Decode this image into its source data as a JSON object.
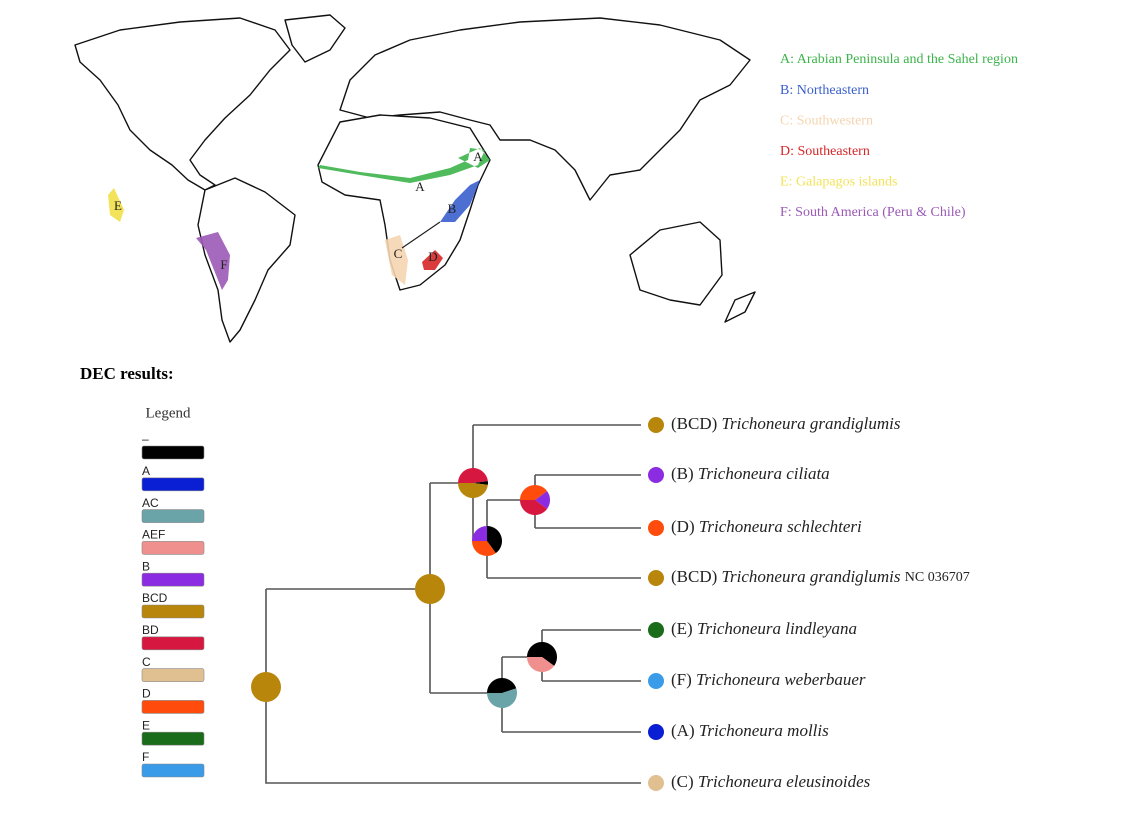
{
  "map_legend": [
    {
      "label": "A: Arabian Peninsula and the Sahel region",
      "color": "#3cb44b"
    },
    {
      "label": "B: Northeastern",
      "color": "#3a5fcd"
    },
    {
      "label": "C: Southwestern",
      "color": "#f5d5b0"
    },
    {
      "label": "D: Southeastern",
      "color": "#d62728"
    },
    {
      "label": "E: Galapagos islands",
      "color": "#f2e35a"
    },
    {
      "label": "F: South America (Peru & Chile)",
      "color": "#9b59b6"
    }
  ],
  "map_labels": [
    "A",
    "A",
    "B",
    "C",
    "D",
    "E",
    "F"
  ],
  "section_title": "DEC results:",
  "legend": {
    "title": "Legend",
    "entries": [
      {
        "label": "–",
        "color": "#000000"
      },
      {
        "label": "A",
        "color": "#0a1fd4"
      },
      {
        "label": "AC",
        "color": "#6aa3a8"
      },
      {
        "label": "AEF",
        "color": "#f0908e"
      },
      {
        "label": "B",
        "color": "#8b2be2"
      },
      {
        "label": "BCD",
        "color": "#b8860b"
      },
      {
        "label": "BD",
        "color": "#d6173f"
      },
      {
        "label": "C",
        "color": "#e0c090"
      },
      {
        "label": "D",
        "color": "#ff4c0c"
      },
      {
        "label": "E",
        "color": "#1a6b1a"
      },
      {
        "label": "F",
        "color": "#3a9be8"
      }
    ]
  },
  "tips": [
    {
      "area": "(BCD)",
      "species": "Trichoneura grandiglumis",
      "color": "#b8860b"
    },
    {
      "area": "(B)",
      "species": "Trichoneura ciliata",
      "color": "#8b2be2"
    },
    {
      "area": "(D)",
      "species": "Trichoneura schlechteri",
      "color": "#ff4c0c"
    },
    {
      "area": "(BCD)",
      "species": "Trichoneura grandiglumis",
      "suffix": "NC 036707",
      "color": "#b8860b"
    },
    {
      "area": "(E)",
      "species": "Trichoneura lindleyana",
      "color": "#1a6b1a"
    },
    {
      "area": "(F)",
      "species": "Trichoneura weberbauer",
      "color": "#3a9be8"
    },
    {
      "area": "(A)",
      "species": "Trichoneura mollis",
      "color": "#0a1fd4"
    },
    {
      "area": "(C)",
      "species": "Trichoneura eleusinoides",
      "color": "#e0c090"
    }
  ],
  "nodes": [
    {
      "slices": [
        {
          "color": "#b8860b",
          "share": 100
        }
      ]
    },
    {
      "slices": [
        {
          "color": "#b8860b",
          "share": 100
        }
      ]
    },
    {
      "slices": [
        {
          "color": "#d6173f",
          "share": 48
        },
        {
          "color": "#000000",
          "share": 4
        },
        {
          "color": "#b8860b",
          "share": 48
        }
      ]
    },
    {
      "slices": [
        {
          "color": "#8b2be2",
          "share": 25
        },
        {
          "color": "#000000",
          "share": 40
        },
        {
          "color": "#ff4c0c",
          "share": 35
        }
      ]
    },
    {
      "slices": [
        {
          "color": "#ff4c0c",
          "share": 40
        },
        {
          "color": "#8b2be2",
          "share": 20
        },
        {
          "color": "#d6173f",
          "share": 40
        }
      ]
    },
    {
      "slices": [
        {
          "color": "#000000",
          "share": 45
        },
        {
          "color": "#6aa3a8",
          "share": 55
        }
      ]
    },
    {
      "slices": [
        {
          "color": "#000000",
          "share": 60
        },
        {
          "color": "#f0908e",
          "share": 40
        }
      ]
    }
  ]
}
